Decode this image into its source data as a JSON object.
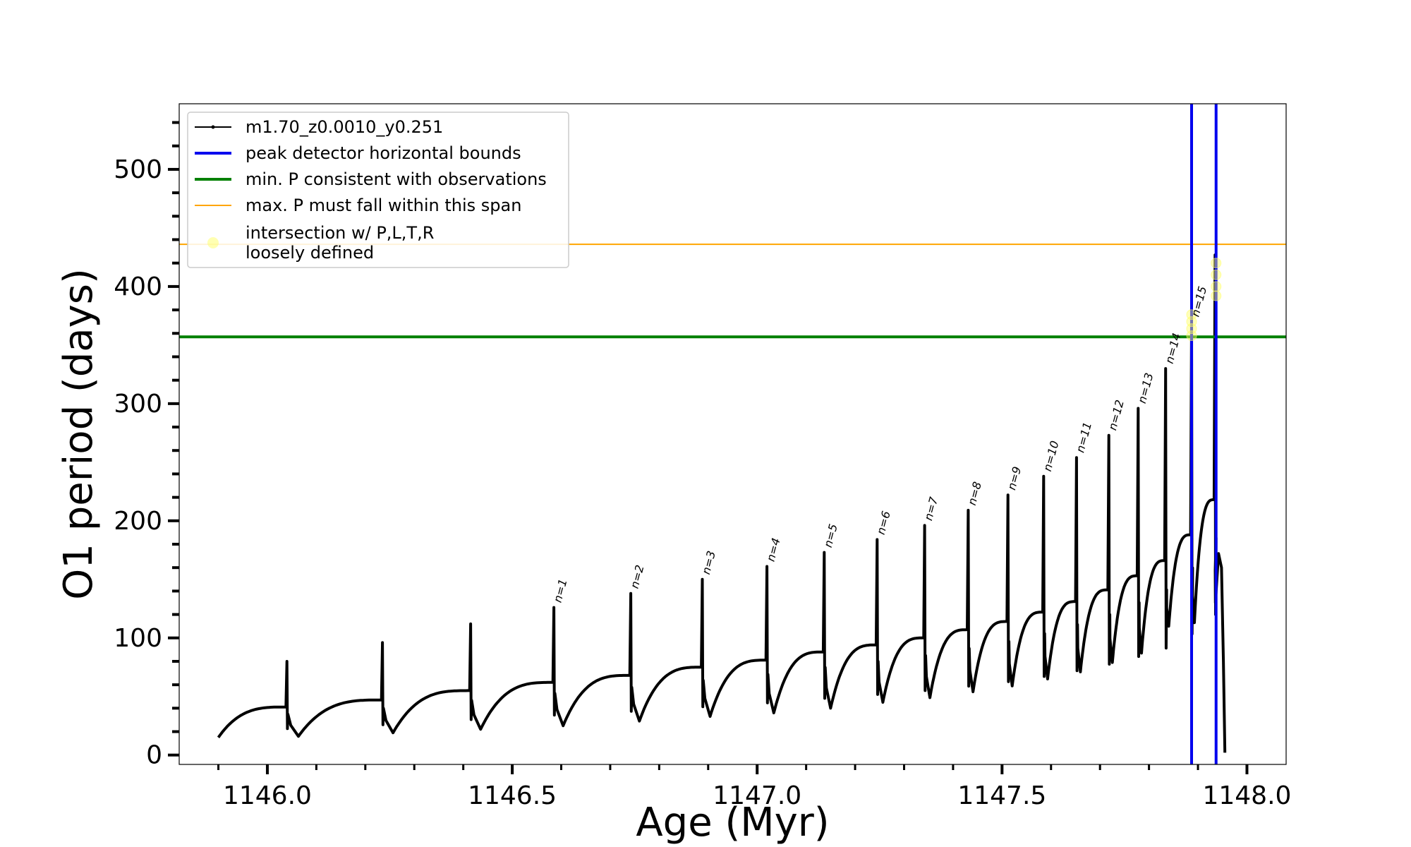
{
  "chart_data": {
    "type": "line",
    "title": "",
    "xlabel": "Age (Myr)",
    "ylabel": "O1 period (days)",
    "xlim": [
      1145.82,
      1148.08
    ],
    "ylim": [
      -8,
      556
    ],
    "x_ticks": [
      1146.0,
      1146.5,
      1147.0,
      1147.5,
      1148.0
    ],
    "x_tick_labels": [
      "1146.0",
      "1146.5",
      "1147.0",
      "1147.5",
      "1148.0"
    ],
    "x_minor_step": 0.1,
    "y_ticks": [
      0,
      100,
      200,
      300,
      400,
      500
    ],
    "y_tick_labels": [
      "0",
      "100",
      "200",
      "300",
      "400",
      "500"
    ],
    "y_minor_step": 20,
    "grid": false,
    "legend_position": "top-left",
    "colors": {
      "series": "#000000",
      "peak_bounds": "#0000ee",
      "min_period": "#008000",
      "max_period": "#ffa500",
      "intersection": "#ffff66"
    },
    "series": [
      {
        "name": "m1.70_z0.0010_y0.251",
        "start_x": 1145.9,
        "start_y": 15,
        "pulses": [
          {
            "x": 1146.04,
            "peak": 80,
            "pre": 41,
            "trough": 16
          },
          {
            "x": 1146.235,
            "peak": 96,
            "pre": 47,
            "trough": 19
          },
          {
            "x": 1146.415,
            "peak": 112,
            "pre": 55,
            "trough": 22
          },
          {
            "x": 1146.585,
            "peak": 126,
            "pre": 62,
            "trough": 25
          },
          {
            "x": 1146.742,
            "peak": 138,
            "pre": 68,
            "trough": 29
          },
          {
            "x": 1146.888,
            "peak": 150,
            "pre": 75,
            "trough": 33
          },
          {
            "x": 1147.02,
            "peak": 161,
            "pre": 81,
            "trough": 36
          },
          {
            "x": 1147.137,
            "peak": 173,
            "pre": 88,
            "trough": 40
          },
          {
            "x": 1147.245,
            "peak": 184,
            "pre": 94,
            "trough": 45
          },
          {
            "x": 1147.342,
            "peak": 196,
            "pre": 100,
            "trough": 49
          },
          {
            "x": 1147.431,
            "peak": 209,
            "pre": 107,
            "trough": 54
          },
          {
            "x": 1147.512,
            "peak": 222,
            "pre": 114,
            "trough": 59
          },
          {
            "x": 1147.585,
            "peak": 238,
            "pre": 122,
            "trough": 65
          },
          {
            "x": 1147.652,
            "peak": 254,
            "pre": 131,
            "trough": 71
          },
          {
            "x": 1147.718,
            "peak": 273,
            "pre": 141,
            "trough": 79
          },
          {
            "x": 1147.778,
            "peak": 296,
            "pre": 153,
            "trough": 87
          },
          {
            "x": 1147.834,
            "peak": 330,
            "pre": 166,
            "trough": 110
          },
          {
            "x": 1147.887,
            "peak": 370,
            "pre": 188,
            "trough": 113
          },
          {
            "x": 1147.935,
            "peak": 427,
            "pre": 218,
            "trough": 130
          }
        ],
        "end": [
          [
            1147.942,
            172
          ],
          [
            1147.948,
            160
          ],
          [
            1147.952,
            80
          ],
          [
            1147.955,
            2
          ]
        ]
      }
    ],
    "cycle_labels": [
      {
        "text": "n=1",
        "x": 1146.585,
        "y": 126
      },
      {
        "text": "n=2",
        "x": 1146.742,
        "y": 138
      },
      {
        "text": "n=3",
        "x": 1146.888,
        "y": 150
      },
      {
        "text": "n=4",
        "x": 1147.02,
        "y": 161
      },
      {
        "text": "n=5",
        "x": 1147.137,
        "y": 173
      },
      {
        "text": "n=6",
        "x": 1147.245,
        "y": 184
      },
      {
        "text": "n=7",
        "x": 1147.342,
        "y": 196
      },
      {
        "text": "n=8",
        "x": 1147.431,
        "y": 209
      },
      {
        "text": "n=9",
        "x": 1147.512,
        "y": 222
      },
      {
        "text": "n=10",
        "x": 1147.585,
        "y": 238
      },
      {
        "text": "n=11",
        "x": 1147.652,
        "y": 254
      },
      {
        "text": "n=12",
        "x": 1147.718,
        "y": 273
      },
      {
        "text": "n=13",
        "x": 1147.778,
        "y": 296
      },
      {
        "text": "n=14",
        "x": 1147.834,
        "y": 330
      },
      {
        "text": "n=15",
        "x": 1147.887,
        "y": 370
      }
    ],
    "vertical_lines": {
      "name": "peak detector horizontal bounds",
      "x": [
        1147.887,
        1147.937
      ]
    },
    "horizontal_lines": [
      {
        "name": "min. P consistent with observations",
        "y": 357
      },
      {
        "name": "max. P must fall within this span",
        "y": 436
      }
    ],
    "intersection_points": {
      "name": "intersection w/ P,L,T,R\nloosely defined",
      "points": [
        [
          1147.887,
          358
        ],
        [
          1147.887,
          364
        ],
        [
          1147.887,
          370
        ],
        [
          1147.887,
          376
        ],
        [
          1147.937,
          392
        ],
        [
          1147.937,
          400
        ],
        [
          1147.937,
          410
        ],
        [
          1147.937,
          420
        ]
      ]
    },
    "legend": [
      {
        "label": "m1.70_z0.0010_y0.251",
        "style": "line-marker",
        "color": "#000000"
      },
      {
        "label": "peak detector horizontal bounds",
        "style": "line-thick",
        "color": "#0000ee"
      },
      {
        "label": "min. P consistent with observations",
        "style": "line-thick",
        "color": "#008000"
      },
      {
        "label": "max. P must fall within this span",
        "style": "line-thin",
        "color": "#ffa500"
      },
      {
        "label": "intersection w/ P,L,T,R\nloosely defined",
        "style": "marker",
        "color": "#ffff66"
      }
    ]
  }
}
